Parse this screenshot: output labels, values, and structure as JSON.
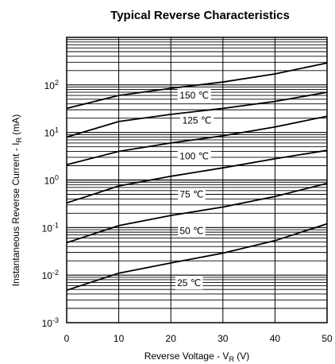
{
  "chart_data": {
    "type": "line",
    "title": "Typical Reverse Characteristics",
    "xlabel": {
      "main": "Reverse Voltage - V",
      "sub": "R",
      "unit": " (V)"
    },
    "ylabel": {
      "main": "Instantaneous Reverse Current - I",
      "sub": "R",
      "unit": " (mA)"
    },
    "xlim": [
      0,
      50
    ],
    "ylim": [
      0.001,
      1000
    ],
    "yscale": "log",
    "grid": true,
    "xticks": [
      0,
      10,
      20,
      30,
      40,
      50
    ],
    "xtick_labels": [
      "0",
      "10",
      "20",
      "30",
      "40",
      "50"
    ],
    "yticks": [
      0.001,
      0.01,
      0.1,
      1,
      10,
      100
    ],
    "ytick_labels": [
      {
        "base": "10",
        "exp": "-3"
      },
      {
        "base": "10",
        "exp": "-2"
      },
      {
        "base": "10",
        "exp": "-1"
      },
      {
        "base": "10",
        "exp": "0"
      },
      {
        "base": "10",
        "exp": "1"
      },
      {
        "base": "10",
        "exp": "2"
      }
    ],
    "series": [
      {
        "name": "25 ℃",
        "label_x": 23.5,
        "label_y": 0.0068,
        "x": [
          0,
          10,
          20,
          30,
          40,
          50
        ],
        "y": [
          0.0048,
          0.011,
          0.018,
          0.029,
          0.053,
          0.12
        ]
      },
      {
        "name": "50 ℃",
        "label_x": 24.0,
        "label_y": 0.085,
        "x": [
          0,
          10,
          20,
          30,
          40,
          50
        ],
        "y": [
          0.048,
          0.11,
          0.18,
          0.27,
          0.45,
          0.85
        ]
      },
      {
        "name": "75 ℃",
        "label_x": 24.0,
        "label_y": 0.5,
        "x": [
          0,
          10,
          20,
          30,
          40,
          50
        ],
        "y": [
          0.33,
          0.75,
          1.2,
          1.8,
          2.8,
          4.2
        ]
      },
      {
        "name": "100 ℃",
        "label_x": 24.5,
        "label_y": 3.2,
        "x": [
          0,
          10,
          20,
          30,
          40,
          50
        ],
        "y": [
          2.1,
          4.0,
          6.0,
          8.5,
          13,
          22
        ]
      },
      {
        "name": "125 ℃",
        "label_x": 25.0,
        "label_y": 18,
        "x": [
          0,
          10,
          20,
          30,
          40,
          50
        ],
        "y": [
          8,
          17,
          24,
          32,
          45,
          70
        ]
      },
      {
        "name": "150 ℃",
        "label_x": 24.5,
        "label_y": 60,
        "x": [
          0,
          10,
          20,
          30,
          40,
          50
        ],
        "y": [
          32,
          60,
          85,
          115,
          170,
          290
        ]
      }
    ]
  }
}
